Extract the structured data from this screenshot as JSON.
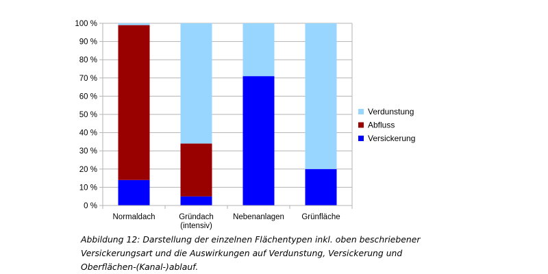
{
  "chart_data": {
    "type": "bar",
    "stacked": true,
    "categories": [
      [
        "Normaldach"
      ],
      [
        "Gründach",
        "(intensiv)"
      ],
      [
        "Nebenanlagen"
      ],
      [
        "Grünfläche"
      ]
    ],
    "series": [
      {
        "name": "Versickerung",
        "color": "#0000ff",
        "values": [
          14,
          5,
          71,
          20
        ]
      },
      {
        "name": "Abfluss",
        "color": "#990000",
        "values": [
          85,
          29,
          0,
          0
        ]
      },
      {
        "name": "Verdunstung",
        "color": "#99d6ff",
        "values": [
          1,
          66,
          29,
          80
        ]
      }
    ],
    "y_ticks": [
      "0 %",
      "10 %",
      "20 %",
      "30 %",
      "40 %",
      "50 %",
      "60 %",
      "70 %",
      "80 %",
      "90 %",
      "100 %"
    ],
    "ylim": [
      0,
      100
    ],
    "grid": true,
    "legend_position": "right",
    "legend_order": [
      "Verdunstung",
      "Abfluss",
      "Versickerung"
    ]
  },
  "caption": {
    "lines": [
      "Abbildung 12: Darstellung der einzelnen Flächentypen inkl. oben beschriebener",
      "Versickerungsart und die Auswirkungen auf Verdunstung, Versickerung und",
      "Oberflächen-(Kanal-)ablauf."
    ]
  }
}
